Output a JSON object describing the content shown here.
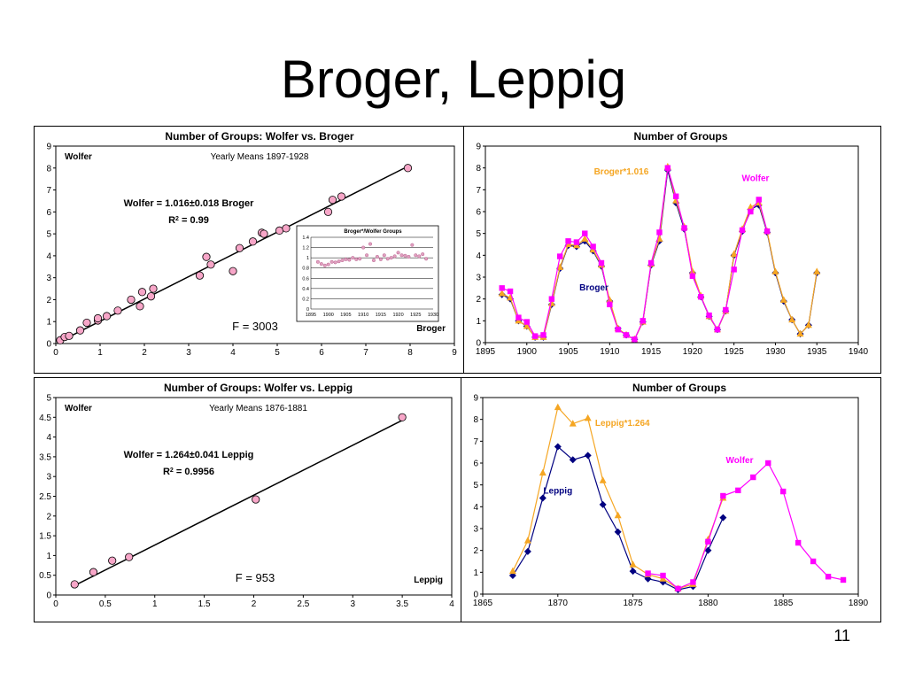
{
  "slide": {
    "title": "Broger, Leppig",
    "page_number": "11"
  },
  "chart_data": [
    {
      "id": "c1",
      "type": "scatter",
      "title": "Number of Groups: Wolfer vs. Broger",
      "xlim": [
        0,
        9
      ],
      "ylim": [
        0,
        9
      ],
      "xticks": [
        "0",
        "1",
        "2",
        "3",
        "4",
        "5",
        "6",
        "7",
        "8",
        "9"
      ],
      "yticks": [
        "0",
        "1",
        "2",
        "3",
        "4",
        "5",
        "6",
        "7",
        "8",
        "9"
      ],
      "series_label": "Wolfer",
      "subtitle": "Yearly Means 1897-1928",
      "equation": "Wolfer = 1.016±0.018 Broger",
      "r2_prefix": "R",
      "r2_sup": "2",
      "r2_value": " = 0.99",
      "f_stat": "F = 3003",
      "x_label": "Broger",
      "marker_color": "#f7a6c8",
      "points": [
        [
          0.1,
          0.15
        ],
        [
          0.2,
          0.3
        ],
        [
          0.3,
          0.35
        ],
        [
          0.55,
          0.6
        ],
        [
          0.7,
          0.95
        ],
        [
          0.95,
          1.05
        ],
        [
          0.95,
          1.15
        ],
        [
          1.15,
          1.25
        ],
        [
          1.4,
          1.5
        ],
        [
          1.7,
          2.0
        ],
        [
          1.9,
          1.7
        ],
        [
          1.95,
          2.35
        ],
        [
          2.15,
          2.15
        ],
        [
          2.2,
          2.5
        ],
        [
          3.25,
          3.1
        ],
        [
          3.4,
          3.95
        ],
        [
          3.5,
          3.6
        ],
        [
          4,
          3.3
        ],
        [
          4.15,
          4.35
        ],
        [
          4.45,
          4.65
        ],
        [
          4.65,
          5.05
        ],
        [
          4.7,
          5.0
        ],
        [
          5.05,
          5.15
        ],
        [
          5.2,
          5.25
        ],
        [
          6.15,
          6.0
        ],
        [
          6.25,
          6.55
        ],
        [
          6.45,
          6.7
        ],
        [
          7.95,
          8.0
        ]
      ],
      "fit": {
        "slope": 1.016
      },
      "inset": {
        "title": "Broger*/Wolfer Groups",
        "xlim": [
          1895,
          1930
        ],
        "ylim": [
          0,
          1.4
        ],
        "xticks": [
          "1895",
          "1900",
          "1905",
          "1910",
          "1915",
          "1920",
          "1925",
          "1930"
        ],
        "yticks": [
          "0",
          "0.2",
          "0.4",
          "0.6",
          "0.8",
          "1",
          "1.2",
          "1.4"
        ],
        "points": [
          [
            1897,
            0.92
          ],
          [
            1898,
            0.88
          ],
          [
            1899,
            0.85
          ],
          [
            1900,
            0.87
          ],
          [
            1901,
            0.92
          ],
          [
            1902,
            0.91
          ],
          [
            1903,
            0.93
          ],
          [
            1904,
            0.95
          ],
          [
            1905,
            0.97
          ],
          [
            1906,
            0.96
          ],
          [
            1907,
            1.0
          ],
          [
            1908,
            0.97
          ],
          [
            1909,
            0.98
          ],
          [
            1910,
            1.2
          ],
          [
            1911,
            1.05
          ],
          [
            1912,
            1.27
          ],
          [
            1913,
            0.95
          ],
          [
            1914,
            1.02
          ],
          [
            1915,
            0.97
          ],
          [
            1916,
            1.05
          ],
          [
            1917,
            0.98
          ],
          [
            1918,
            1.0
          ],
          [
            1919,
            1.03
          ],
          [
            1920,
            1.1
          ],
          [
            1921,
            1.05
          ],
          [
            1922,
            1.04
          ],
          [
            1923,
            1.02
          ],
          [
            1924,
            1.25
          ],
          [
            1925,
            1.05
          ],
          [
            1926,
            1.03
          ],
          [
            1927,
            1.07
          ],
          [
            1928,
            0.98
          ]
        ]
      }
    },
    {
      "id": "c2",
      "type": "line",
      "title": "Number of Groups",
      "xlim": [
        1895,
        1940
      ],
      "ylim": [
        0,
        9
      ],
      "xticks": [
        "1895",
        "1900",
        "1905",
        "1910",
        "1915",
        "1920",
        "1925",
        "1930",
        "1935",
        "1940"
      ],
      "yticks": [
        "0",
        "1",
        "2",
        "3",
        "4",
        "5",
        "6",
        "7",
        "8",
        "9"
      ],
      "series": [
        {
          "name": "Broger",
          "color": "#000080",
          "marker": "diamond",
          "x": [
            1897,
            1898,
            1899,
            1900,
            1901,
            1902,
            1903,
            1904,
            1905,
            1906,
            1907,
            1908,
            1909,
            1910,
            1911,
            1912,
            1913,
            1914,
            1915,
            1916,
            1917,
            1918,
            1919,
            1920,
            1921,
            1922,
            1923,
            1924,
            1925,
            1926,
            1927,
            1928,
            1929,
            1930,
            1931,
            1932,
            1933,
            1934,
            1935
          ],
          "values": [
            2.2,
            2.0,
            1.0,
            0.75,
            0.25,
            0.25,
            1.75,
            3.4,
            4.45,
            4.4,
            4.65,
            4.2,
            3.5,
            1.9,
            0.65,
            0.35,
            0.15,
            0.95,
            3.55,
            4.65,
            7.9,
            6.4,
            5.2,
            3.2,
            2.1,
            1.2,
            0.6,
            1.45,
            4.0,
            5.1,
            6.1,
            6.3,
            5.05,
            3.2,
            1.9,
            1.05,
            0.4,
            0.8,
            3.2
          ]
        },
        {
          "name": "Broger*1.016",
          "color": "#f5a623",
          "marker": "triangle",
          "x": [
            1897,
            1898,
            1899,
            1900,
            1901,
            1902,
            1903,
            1904,
            1905,
            1906,
            1907,
            1908,
            1909,
            1910,
            1911,
            1912,
            1913,
            1914,
            1915,
            1916,
            1917,
            1918,
            1919,
            1920,
            1921,
            1922,
            1923,
            1924,
            1925,
            1926,
            1927,
            1928,
            1929,
            1930,
            1931,
            1932,
            1933,
            1934,
            1935
          ],
          "values": [
            2.25,
            2.05,
            1.0,
            0.75,
            0.25,
            0.25,
            1.8,
            3.45,
            4.5,
            4.45,
            4.75,
            4.25,
            3.55,
            1.95,
            0.65,
            0.35,
            0.15,
            0.95,
            3.6,
            4.75,
            8.05,
            6.5,
            5.3,
            3.25,
            2.15,
            1.2,
            0.6,
            1.45,
            4.05,
            5.2,
            6.2,
            6.4,
            5.1,
            3.25,
            1.95,
            1.05,
            0.4,
            0.8,
            3.25
          ]
        },
        {
          "name": "Wolfer",
          "color": "#ff00ff",
          "marker": "square",
          "x": [
            1897,
            1898,
            1899,
            1900,
            1901,
            1902,
            1903,
            1904,
            1905,
            1906,
            1907,
            1908,
            1909,
            1910,
            1911,
            1912,
            1913,
            1914,
            1915,
            1916,
            1917,
            1918,
            1919,
            1920,
            1921,
            1922,
            1923,
            1924,
            1925,
            1926,
            1927,
            1928,
            1929
          ],
          "values": [
            2.5,
            2.35,
            1.15,
            0.95,
            0.3,
            0.35,
            2.0,
            3.95,
            4.65,
            4.6,
            5.0,
            4.4,
            3.65,
            1.75,
            0.6,
            0.35,
            0.15,
            1.0,
            3.65,
            5.05,
            8.0,
            6.7,
            5.25,
            3.05,
            2.1,
            1.25,
            0.6,
            1.5,
            3.35,
            5.15,
            6.0,
            6.55,
            5.1
          ]
        }
      ]
    },
    {
      "id": "c3",
      "type": "scatter",
      "title": "Number of Groups: Wolfer vs. Leppig",
      "xlim": [
        0,
        4
      ],
      "ylim": [
        0,
        5
      ],
      "xticks": [
        "0",
        "0.5",
        "1",
        "1.5",
        "2",
        "2.5",
        "3",
        "3.5",
        "4"
      ],
      "yticks": [
        "0",
        "0.5",
        "1",
        "1.5",
        "2",
        "2.5",
        "3",
        "3.5",
        "4",
        "4.5",
        "5"
      ],
      "series_label": "Wolfer",
      "subtitle": "Yearly Means 1876-1881",
      "equation": "Wolfer = 1.264±0.041 Leppig",
      "r2_prefix": "R",
      "r2_sup": "2",
      "r2_value": " = 0.9956",
      "f_stat": "F = 953",
      "x_label": "Leppig",
      "marker_color": "#f7a6c8",
      "points": [
        [
          0.19,
          0.27
        ],
        [
          0.38,
          0.58
        ],
        [
          0.57,
          0.87
        ],
        [
          0.74,
          0.96
        ],
        [
          2.02,
          2.42
        ],
        [
          3.5,
          4.5
        ]
      ],
      "fit": {
        "slope": 1.264
      }
    },
    {
      "id": "c4",
      "type": "line",
      "title": "Number of Groups",
      "xlim": [
        1865,
        1890
      ],
      "ylim": [
        0,
        9
      ],
      "xticks": [
        "1865",
        "1870",
        "1875",
        "1880",
        "1885",
        "1890"
      ],
      "yticks": [
        "0",
        "1",
        "2",
        "3",
        "4",
        "5",
        "6",
        "7",
        "8",
        "9"
      ],
      "series": [
        {
          "name": "Leppig",
          "color": "#000080",
          "marker": "diamond",
          "x": [
            1867,
            1868,
            1869,
            1870,
            1871,
            1872,
            1873,
            1874,
            1875,
            1876,
            1877,
            1878,
            1879,
            1880,
            1881
          ],
          "values": [
            0.85,
            1.95,
            4.4,
            6.75,
            6.15,
            6.35,
            4.1,
            2.85,
            1.05,
            0.7,
            0.55,
            0.2,
            0.35,
            2.0,
            3.5
          ]
        },
        {
          "name": "Leppig*1.264",
          "color": "#f5a623",
          "marker": "triangle",
          "x": [
            1867,
            1868,
            1869,
            1870,
            1871,
            1872,
            1873,
            1874,
            1875,
            1876,
            1877,
            1878,
            1879,
            1880,
            1881
          ],
          "values": [
            1.05,
            2.45,
            5.55,
            8.55,
            7.8,
            8.05,
            5.2,
            3.6,
            1.35,
            0.9,
            0.7,
            0.25,
            0.45,
            2.5,
            4.4
          ]
        },
        {
          "name": "Wolfer",
          "color": "#ff00ff",
          "marker": "square",
          "x": [
            1876,
            1877,
            1878,
            1879,
            1880,
            1881,
            1882,
            1883,
            1884,
            1885,
            1886,
            1887,
            1888,
            1889
          ],
          "values": [
            0.95,
            0.85,
            0.25,
            0.55,
            2.4,
            4.5,
            4.75,
            5.35,
            6.0,
            4.7,
            2.35,
            1.5,
            0.8,
            0.65
          ]
        }
      ]
    }
  ]
}
